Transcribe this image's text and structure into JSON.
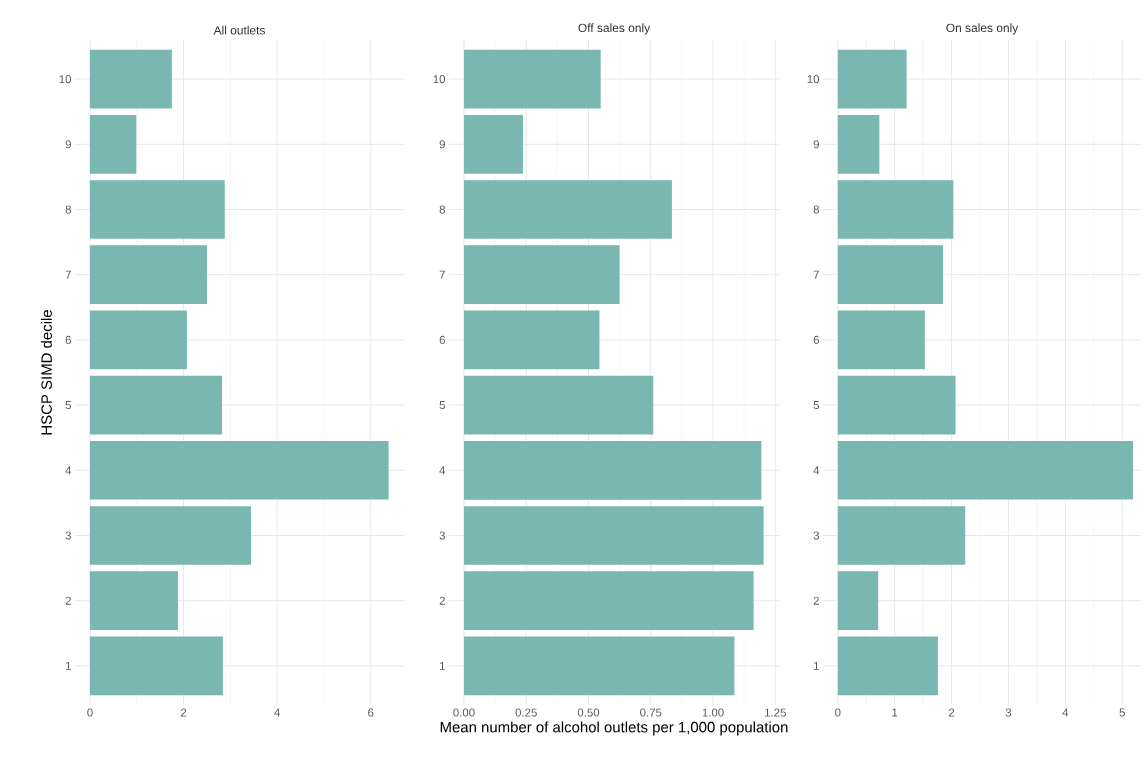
{
  "chart_data": [
    {
      "type": "bar",
      "orientation": "horizontal",
      "title": "All outlets",
      "ylabel": "HSCP SIMD decile",
      "categories": [
        "10",
        "9",
        "8",
        "7",
        "6",
        "5",
        "4",
        "3",
        "2",
        "1"
      ],
      "values": [
        1.75,
        0.99,
        2.88,
        2.5,
        2.07,
        2.82,
        6.38,
        3.44,
        1.88,
        2.84
      ],
      "color": "#79b7b0",
      "xlim": [
        -0.32,
        6.71
      ],
      "xticks": [
        0,
        2,
        4,
        6
      ],
      "grid": true
    },
    {
      "type": "bar",
      "orientation": "horizontal",
      "title": "Off sales only",
      "xlabel": "Mean number of alcohol outlets per 1,000 population",
      "categories": [
        "10",
        "9",
        "8",
        "7",
        "6",
        "5",
        "4",
        "3",
        "2",
        "1"
      ],
      "values": [
        0.549,
        0.237,
        0.835,
        0.625,
        0.544,
        0.76,
        1.194,
        1.203,
        1.163,
        1.086
      ],
      "color": "#79b7b0",
      "xlim": [
        -0.06,
        1.265
      ],
      "xticks": [
        {
          "value": 0,
          "label": "0.00"
        },
        {
          "value": 0.25,
          "label": "0.25"
        },
        {
          "value": 0.5,
          "label": "0.50"
        },
        {
          "value": 0.75,
          "label": "0.75"
        },
        {
          "value": 1,
          "label": "1.00"
        },
        {
          "value": 1.25,
          "label": "1.25"
        }
      ],
      "grid": true
    },
    {
      "type": "bar",
      "orientation": "horizontal",
      "title": "On sales only",
      "categories": [
        "10",
        "9",
        "8",
        "7",
        "6",
        "5",
        "4",
        "3",
        "2",
        "1"
      ],
      "values": [
        1.21,
        0.73,
        2.03,
        1.85,
        1.53,
        2.07,
        5.19,
        2.24,
        0.71,
        1.76
      ],
      "color": "#79b7b0",
      "xlim": [
        -0.26,
        5.33
      ],
      "xticks": [
        0,
        1,
        2,
        3,
        4,
        5
      ],
      "grid": true
    }
  ]
}
